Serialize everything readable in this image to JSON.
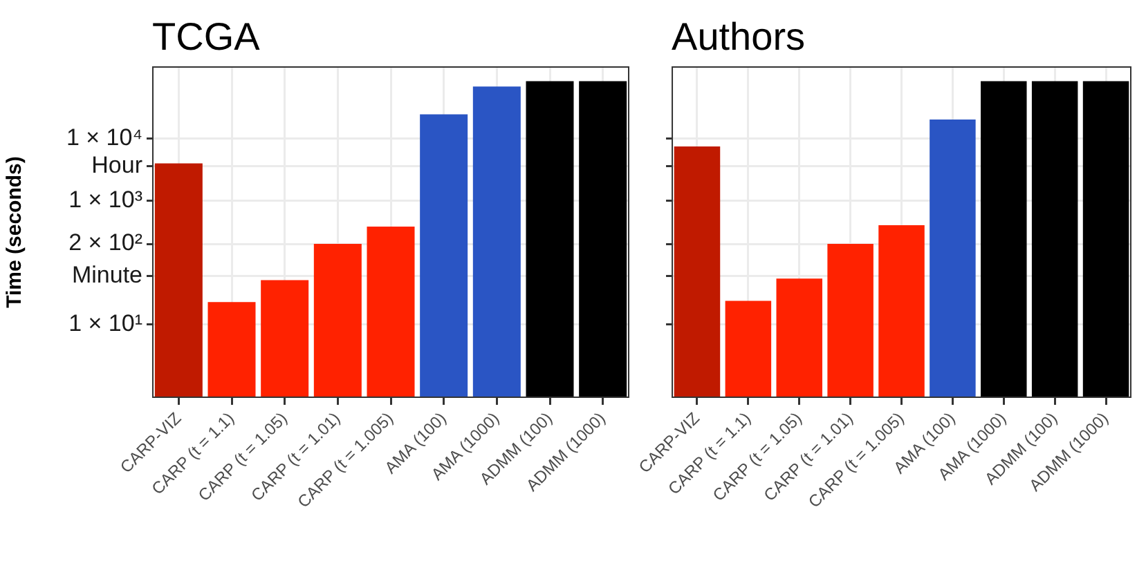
{
  "chart_data": [
    {
      "type": "bar",
      "title": "TCGA",
      "ylabel": "Time (seconds)",
      "categories": [
        "CARP-VIZ",
        "CARP (t = 1.1)",
        "CARP (t = 1.05)",
        "CARP (t = 1.01)",
        "CARP (t = 1.005)",
        "AMA (100)",
        "AMA (1000)",
        "ADMM (100)",
        "ADMM (1000)"
      ],
      "values": [
        4000,
        23,
        52,
        200,
        380,
        24800,
        70000,
        85000,
        85000
      ],
      "colors": [
        "#c01a00",
        "#ff2200",
        "#ff2200",
        "#ff2200",
        "#ff2200",
        "#2a55c4",
        "#2a55c4",
        "#000000",
        "#000000"
      ],
      "log": "y",
      "ylim": [
        0.65,
        148000
      ],
      "yticks": [
        {
          "value": 10,
          "label": "1 × 10¹"
        },
        {
          "value": 60,
          "label": "Minute"
        },
        {
          "value": 200,
          "label": "2 × 10²"
        },
        {
          "value": 1000,
          "label": "1 × 10³"
        },
        {
          "value": 3600,
          "label": "Hour"
        },
        {
          "value": 10000,
          "label": "1 × 10⁴"
        }
      ],
      "grid": true
    },
    {
      "type": "bar",
      "title": "Authors",
      "categories": [
        "CARP-VIZ",
        "CARP (t = 1.1)",
        "CARP (t = 1.05)",
        "CARP (t = 1.01)",
        "CARP (t = 1.005)",
        "AMA (100)",
        "AMA (1000)",
        "ADMM (100)",
        "ADMM (1000)"
      ],
      "values": [
        7500,
        24,
        55,
        200,
        400,
        20500,
        85000,
        85000,
        85000
      ],
      "colors": [
        "#c01a00",
        "#ff2200",
        "#ff2200",
        "#ff2200",
        "#ff2200",
        "#2a55c4",
        "#000000",
        "#000000",
        "#000000"
      ],
      "log": "y",
      "ylim": [
        0.65,
        148000
      ],
      "yticks": [
        {
          "value": 10,
          "label": null
        },
        {
          "value": 60,
          "label": null
        },
        {
          "value": 200,
          "label": null
        },
        {
          "value": 1000,
          "label": null
        },
        {
          "value": 3600,
          "label": null
        },
        {
          "value": 10000,
          "label": null
        }
      ],
      "grid": true,
      "tick_labels": "x"
    }
  ]
}
